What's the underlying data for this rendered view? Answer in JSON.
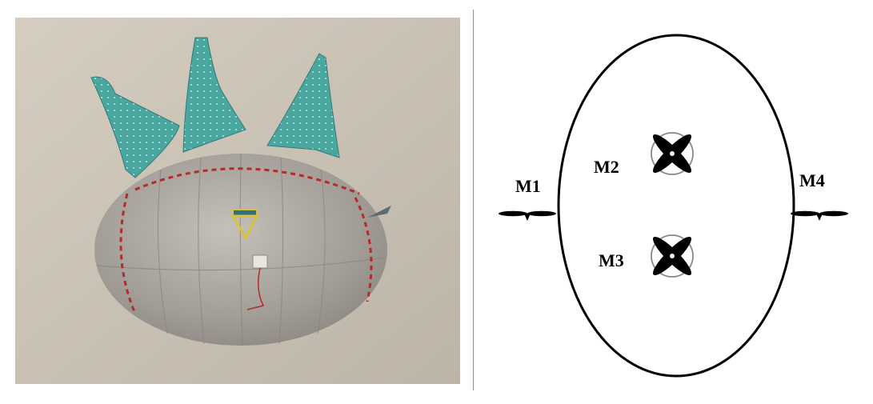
{
  "colors": {
    "wall": "#cdc4b8",
    "balloon": "#a9a49d",
    "fin": "#4aa7a0",
    "stitch": "#b52a2a",
    "outline": "#000000"
  },
  "diagram": {
    "motors": [
      {
        "id": "M1",
        "label": "M1",
        "type": "horizontal-propeller"
      },
      {
        "id": "M2",
        "label": "M2",
        "type": "vertical-propeller"
      },
      {
        "id": "M3",
        "label": "M3",
        "type": "vertical-propeller"
      },
      {
        "id": "M4",
        "label": "M4",
        "type": "horizontal-propeller"
      }
    ]
  }
}
